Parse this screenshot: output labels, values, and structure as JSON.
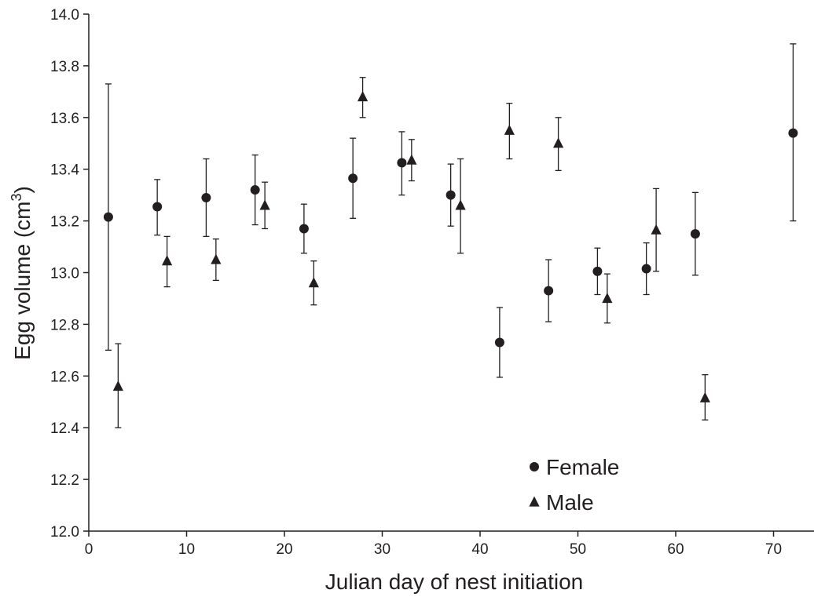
{
  "chart_data": {
    "type": "scatter",
    "title": "",
    "xlabel": "Julian day of nest initiation",
    "ylabel": "Egg volume (cm",
    "ylabel_sup": "3",
    "ylabel_close": ")",
    "xlim": [
      0,
      74
    ],
    "ylim": [
      12.0,
      14.0
    ],
    "xticks": [
      0,
      10,
      20,
      30,
      40,
      50,
      60,
      70
    ],
    "xtick_labels": [
      "0",
      "10",
      "20",
      "30",
      "40",
      "50",
      "60",
      "70"
    ],
    "yticks": [
      12.0,
      12.2,
      12.4,
      12.6,
      12.8,
      13.0,
      13.2,
      13.4,
      13.6,
      13.8,
      14.0
    ],
    "ytick_labels": [
      "12.0",
      "12.2",
      "12.4",
      "12.6",
      "12.8",
      "13.0",
      "13.2",
      "13.4",
      "13.6",
      "13.8",
      "14.0"
    ],
    "grid": false,
    "legend_position": "bottom-center",
    "series": [
      {
        "name": "Female",
        "marker": "circle",
        "color": "#231f20",
        "points": [
          {
            "x": 2,
            "y": 13.215,
            "err_low": 12.7,
            "err_high": 13.73
          },
          {
            "x": 7,
            "y": 13.255,
            "err_low": 13.145,
            "err_high": 13.36
          },
          {
            "x": 12,
            "y": 13.29,
            "err_low": 13.14,
            "err_high": 13.44
          },
          {
            "x": 17,
            "y": 13.32,
            "err_low": 13.185,
            "err_high": 13.455
          },
          {
            "x": 22,
            "y": 13.17,
            "err_low": 13.075,
            "err_high": 13.265
          },
          {
            "x": 27,
            "y": 13.365,
            "err_low": 13.21,
            "err_high": 13.52
          },
          {
            "x": 32,
            "y": 13.425,
            "err_low": 13.3,
            "err_high": 13.545
          },
          {
            "x": 37,
            "y": 13.3,
            "err_low": 13.18,
            "err_high": 13.42
          },
          {
            "x": 42,
            "y": 12.73,
            "err_low": 12.595,
            "err_high": 12.865
          },
          {
            "x": 47,
            "y": 12.93,
            "err_low": 12.81,
            "err_high": 13.05
          },
          {
            "x": 52,
            "y": 13.005,
            "err_low": 12.915,
            "err_high": 13.095
          },
          {
            "x": 57,
            "y": 13.015,
            "err_low": 12.915,
            "err_high": 13.115
          },
          {
            "x": 62,
            "y": 13.15,
            "err_low": 12.99,
            "err_high": 13.31
          },
          {
            "x": 72,
            "y": 13.54,
            "err_low": 13.2,
            "err_high": 13.885
          }
        ]
      },
      {
        "name": "Male",
        "marker": "triangle",
        "color": "#231f20",
        "points": [
          {
            "x": 3,
            "y": 12.56,
            "err_low": 12.4,
            "err_high": 12.725
          },
          {
            "x": 8,
            "y": 13.045,
            "err_low": 12.945,
            "err_high": 13.14
          },
          {
            "x": 13,
            "y": 13.05,
            "err_low": 12.97,
            "err_high": 13.13
          },
          {
            "x": 18,
            "y": 13.26,
            "err_low": 13.17,
            "err_high": 13.35
          },
          {
            "x": 23,
            "y": 12.96,
            "err_low": 12.875,
            "err_high": 13.045
          },
          {
            "x": 28,
            "y": 13.68,
            "err_low": 13.6,
            "err_high": 13.755
          },
          {
            "x": 33,
            "y": 13.435,
            "err_low": 13.355,
            "err_high": 13.515
          },
          {
            "x": 38,
            "y": 13.26,
            "err_low": 13.075,
            "err_high": 13.44
          },
          {
            "x": 43,
            "y": 13.55,
            "err_low": 13.44,
            "err_high": 13.655
          },
          {
            "x": 48,
            "y": 13.5,
            "err_low": 13.395,
            "err_high": 13.6
          },
          {
            "x": 53,
            "y": 12.9,
            "err_low": 12.805,
            "err_high": 12.995
          },
          {
            "x": 58,
            "y": 13.165,
            "err_low": 13.005,
            "err_high": 13.325
          },
          {
            "x": 63,
            "y": 12.515,
            "err_low": 12.43,
            "err_high": 12.605
          }
        ]
      }
    ]
  }
}
